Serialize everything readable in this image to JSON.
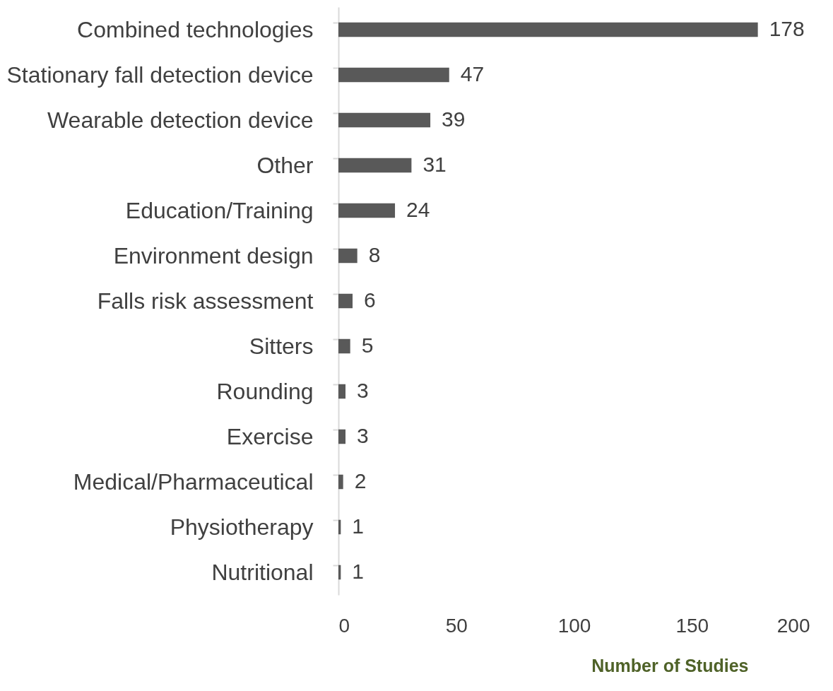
{
  "chart_data": {
    "type": "bar",
    "orientation": "horizontal",
    "xlabel": "Number of Studies",
    "categories": [
      "Combined technologies",
      "Stationary fall detection device",
      "Wearable detection device",
      "Other",
      "Education/Training",
      "Environment design",
      "Falls risk assessment",
      "Sitters",
      "Rounding",
      "Exercise",
      "Medical/Pharmaceutical",
      "Physiotherapy",
      "Nutritional"
    ],
    "values": [
      178,
      47,
      39,
      31,
      24,
      8,
      6,
      5,
      3,
      3,
      2,
      1,
      1
    ],
    "color": "#595959",
    "xlim": [
      0,
      200
    ],
    "xticks": [
      0,
      50,
      100,
      150,
      200
    ],
    "data_labels": true,
    "grid": false
  }
}
